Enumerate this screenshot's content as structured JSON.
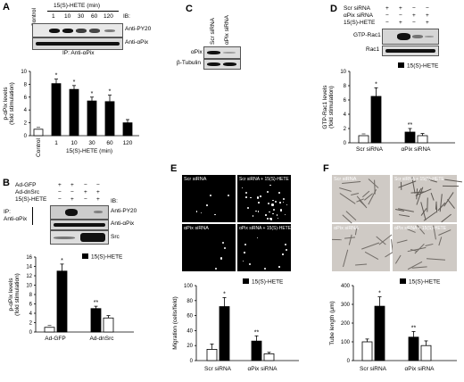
{
  "figure": {
    "A": {
      "label": "A",
      "control": "Control",
      "time_header": "15(S)-HETE (min)",
      "lanes": [
        "1",
        "10",
        "30",
        "60",
        "120"
      ],
      "ib": "IB:",
      "blot_rows": [
        "Anti-PY20",
        "Anti-αPix"
      ],
      "ip": "IP: Anti-αPix"
    },
    "B": {
      "label": "B",
      "rows": [
        "Ad-GFP",
        "Ad-dnSrc",
        "15(S)-HETE"
      ],
      "signs": [
        [
          "+",
          "+",
          "−",
          "−"
        ],
        [
          "−",
          "−",
          "+",
          "+"
        ],
        [
          "−",
          "+",
          "−",
          "+"
        ]
      ],
      "ib": "IB:",
      "ip": "IP:",
      "ip_antibody": "Anti-αPix",
      "blot_rows": [
        "Anti-PY20",
        "Anti-αPix",
        "Src"
      ]
    },
    "C": {
      "label": "C",
      "lanes": [
        "Scr siRNA",
        "αPix siRNA"
      ],
      "blot_rows": [
        "αPix",
        "β-Tubulin"
      ]
    },
    "D": {
      "label": "D",
      "rows": [
        "Scr siRNA",
        "αPix siRNA",
        "15(S)-HETE"
      ],
      "signs": [
        [
          "+",
          "+",
          "−",
          "−"
        ],
        [
          "−",
          "−",
          "+",
          "+"
        ],
        [
          "−",
          "+",
          "−",
          "+"
        ]
      ],
      "blot_rows": [
        "GTP-Rac1",
        "Rac1"
      ]
    },
    "E": {
      "label": "E",
      "micro": [
        "Scr siRNA",
        "Scr siRNA + 15(S)-HETE",
        "αPix siRNA",
        "αPix siRNA + 15(S)-HETE"
      ]
    },
    "F": {
      "label": "F",
      "micro": [
        "Scr siRNA",
        "Scr siRNA + 15(S)-HETE",
        "αPix siRNA",
        "αPix siRNA + 15(S)-HETE"
      ]
    }
  },
  "chart_data": [
    {
      "id": "A",
      "type": "bar",
      "categories": [
        "Control",
        "1",
        "10",
        "30",
        "60",
        "120"
      ],
      "values": [
        1,
        8.1,
        7.2,
        5.4,
        5.3,
        2.0
      ],
      "errors": [
        0,
        0.7,
        0.6,
        0.6,
        1.0,
        0.5
      ],
      "significant": [
        "",
        "*",
        "*",
        "*",
        "*",
        ""
      ],
      "ylabel": "p-αPix levels\n(fold stimulation)",
      "xlabel": "15(S)-HETE (min)",
      "yticks": [
        0,
        2,
        4,
        6,
        8,
        10
      ],
      "ylim": [
        0,
        10
      ],
      "colors": [
        "#ffffff",
        "#000000",
        "#000000",
        "#000000",
        "#000000",
        "#000000"
      ]
    },
    {
      "id": "B",
      "type": "bar",
      "categories": [
        "Ad-GFP",
        "Ad-dnSrc"
      ],
      "series": [
        {
          "values": [
            1,
            5
          ],
          "color": "#ffffff"
        },
        {
          "name": "15(S)-HETE",
          "values": [
            13,
            3
          ],
          "color": "#000000"
        }
      ],
      "plot_order": [
        [
          0,
          0
        ],
        [
          1,
          0
        ],
        [
          0,
          1
        ],
        [
          1,
          1
        ]
      ],
      "bar_values": [
        1,
        13,
        5,
        3
      ],
      "bar_colors": [
        "#ffffff",
        "#000000",
        "#000000",
        "#ffffff"
      ],
      "errors": [
        0,
        1.5,
        0.5,
        0.5
      ],
      "significant": [
        "",
        "*",
        "**",
        ""
      ],
      "legend": "15(S)-HETE",
      "ylabel": "p-αPix levels\n(fold stimulation)",
      "yticks": [
        0,
        2,
        4,
        6,
        8,
        10,
        12,
        14,
        16
      ],
      "ylim": [
        0,
        16
      ]
    },
    {
      "id": "D",
      "type": "bar",
      "categories": [
        "Scr siRNA",
        "αPix siRNA"
      ],
      "bar_values": [
        1,
        6.5,
        1.5,
        1.0
      ],
      "bar_colors": [
        "#ffffff",
        "#000000",
        "#000000",
        "#ffffff"
      ],
      "errors": [
        0,
        1.2,
        0.5,
        0.3
      ],
      "significant": [
        "",
        "*",
        "**",
        ""
      ],
      "legend": "15(S)-HETE",
      "ylabel": "GTP-Rac1 levels\n(fold stimulation)",
      "yticks": [
        0,
        2,
        4,
        6,
        8,
        10
      ],
      "ylim": [
        0,
        10
      ]
    },
    {
      "id": "E",
      "type": "bar",
      "categories": [
        "Scr siRNA",
        "αPix siRNA"
      ],
      "bar_values": [
        15,
        72,
        26,
        9
      ],
      "bar_colors": [
        "#ffffff",
        "#000000",
        "#000000",
        "#ffffff"
      ],
      "errors": [
        7,
        12,
        7,
        2
      ],
      "significant": [
        "",
        "*",
        "**",
        ""
      ],
      "legend": "15(S)-HETE",
      "ylabel": "Migration (cells/field)",
      "yticks": [
        0,
        20,
        40,
        60,
        80,
        100
      ],
      "ylim": [
        0,
        100
      ]
    },
    {
      "id": "F",
      "type": "bar",
      "categories": [
        "Scr siRNA",
        "αPix siRNA"
      ],
      "bar_values": [
        100,
        290,
        125,
        80
      ],
      "bar_colors": [
        "#ffffff",
        "#000000",
        "#000000",
        "#ffffff"
      ],
      "errors": [
        15,
        50,
        30,
        25
      ],
      "significant": [
        "",
        "*",
        "**",
        ""
      ],
      "legend": "15(S)-HETE",
      "ylabel": "Tube length (μm)",
      "yticks": [
        0,
        100,
        200,
        300,
        400
      ],
      "ylim": [
        0,
        400
      ]
    }
  ]
}
